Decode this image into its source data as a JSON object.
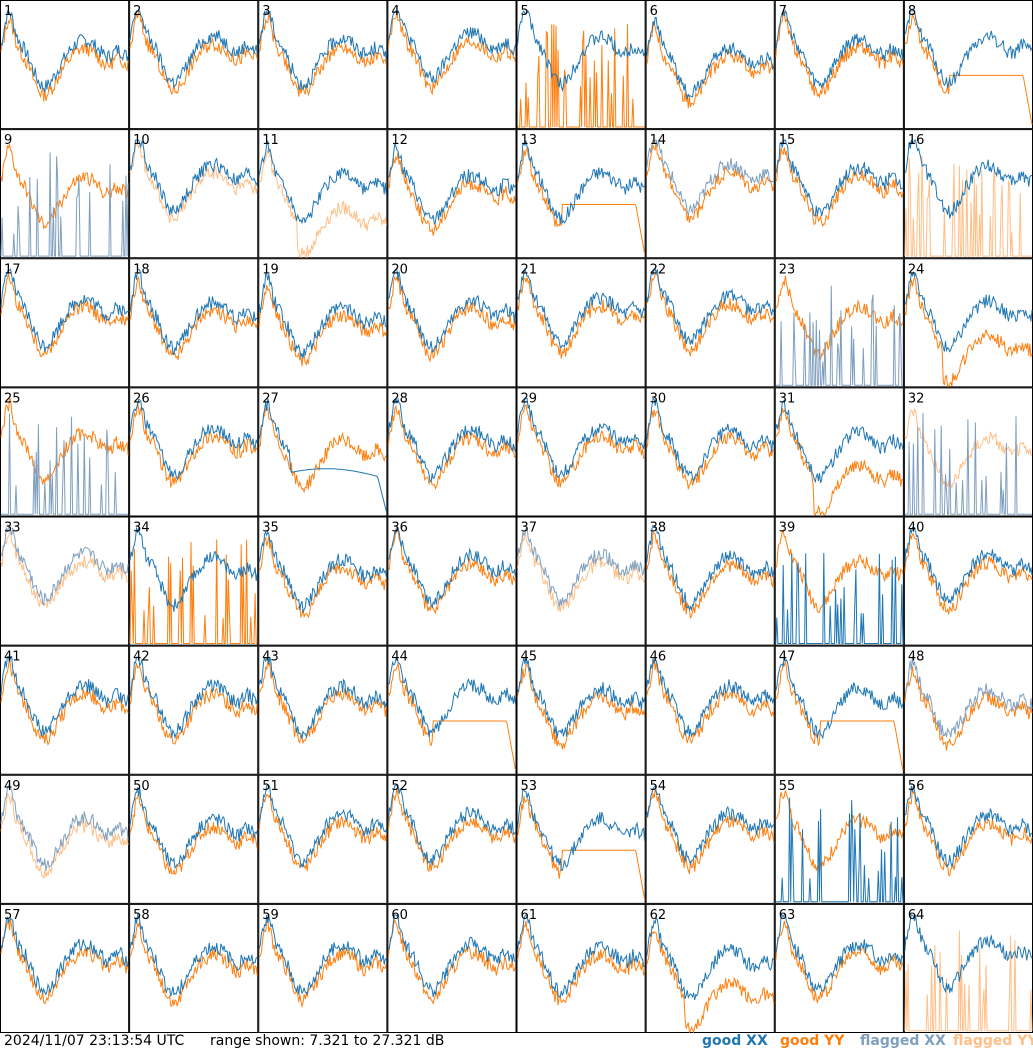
{
  "footer": {
    "timestamp": "2024/11/07 23:13:54 UTC",
    "range_text": "range shown: 7.321 to 27.321 dB"
  },
  "legend": [
    {
      "label_good": "good",
      "label_pol": "XX",
      "color": "#1f77b4"
    },
    {
      "label_good": "good",
      "label_pol": "YY",
      "color": "#ff7f0e"
    },
    {
      "label_good": "flagged",
      "label_pol": "XX",
      "color": "#7f9fbf"
    },
    {
      "label_good": "flagged",
      "label_pol": "YY",
      "color": "#ffbf87"
    }
  ],
  "colors": {
    "good_xx": "#1f77b4",
    "good_yy": "#ff7f0e",
    "flagged_xx": "#7f9fbf",
    "flagged_yy": "#ffbf87"
  },
  "chart_data": {
    "type": "line",
    "ylim": [
      7.321,
      27.321
    ],
    "grid_rows": 8,
    "grid_cols": 8,
    "panels": [
      {
        "id": "1",
        "xx": "good",
        "yy": "good",
        "mode": "normal",
        "offset": 0.0
      },
      {
        "id": "2",
        "xx": "good",
        "yy": "good",
        "mode": "normal",
        "offset": 0.5
      },
      {
        "id": "3",
        "xx": "good",
        "yy": "good",
        "mode": "normal",
        "offset": 0.2
      },
      {
        "id": "4",
        "xx": "good",
        "yy": "good",
        "mode": "normal",
        "offset": 0.8
      },
      {
        "id": "5",
        "xx": "good",
        "yy": "good",
        "mode": "yy_spiky",
        "offset": 0.3
      },
      {
        "id": "6",
        "xx": "good",
        "yy": "good",
        "mode": "normal",
        "offset": -0.8
      },
      {
        "id": "7",
        "xx": "good",
        "yy": "good",
        "mode": "normal",
        "offset": 0.2
      },
      {
        "id": "8",
        "xx": "good",
        "yy": "good",
        "mode": "yy_drop",
        "offset": 0.4
      },
      {
        "id": "9",
        "xx": "flagged",
        "yy": "good",
        "mode": "xx_spiky",
        "offset": 0.0
      },
      {
        "id": "10",
        "xx": "good",
        "yy": "flagged",
        "mode": "normal",
        "offset": 0.5
      },
      {
        "id": "11",
        "xx": "good",
        "yy": "flagged",
        "mode": "yy_low",
        "offset": -0.5
      },
      {
        "id": "12",
        "xx": "good",
        "yy": "good",
        "mode": "normal",
        "offset": -0.6
      },
      {
        "id": "13",
        "xx": "good",
        "yy": "good",
        "mode": "yy_drop",
        "offset": -0.3
      },
      {
        "id": "14",
        "xx": "flagged",
        "yy": "good",
        "mode": "normal",
        "offset": 0.6
      },
      {
        "id": "15",
        "xx": "good",
        "yy": "good",
        "mode": "normal",
        "offset": 0.2
      },
      {
        "id": "16",
        "xx": "good",
        "yy": "flagged",
        "mode": "yy_spiky",
        "offset": 0.4
      },
      {
        "id": "17",
        "xx": "good",
        "yy": "good",
        "mode": "normal",
        "offset": 0.0
      },
      {
        "id": "18",
        "xx": "good",
        "yy": "good",
        "mode": "normal",
        "offset": -0.4
      },
      {
        "id": "19",
        "xx": "good",
        "yy": "good",
        "mode": "normal",
        "offset": -0.9
      },
      {
        "id": "20",
        "xx": "good",
        "yy": "good",
        "mode": "normal",
        "offset": -0.2
      },
      {
        "id": "21",
        "xx": "good",
        "yy": "good",
        "mode": "normal",
        "offset": 0.1
      },
      {
        "id": "22",
        "xx": "good",
        "yy": "good",
        "mode": "normal",
        "offset": 0.3
      },
      {
        "id": "23",
        "xx": "flagged",
        "yy": "good",
        "mode": "xx_spiky",
        "offset": 0.0
      },
      {
        "id": "24",
        "xx": "good",
        "yy": "good",
        "mode": "yy_low",
        "offset": -0.3
      },
      {
        "id": "25",
        "xx": "flagged",
        "yy": "good",
        "mode": "xx_spiky",
        "offset": 0.3
      },
      {
        "id": "26",
        "xx": "good",
        "yy": "good",
        "mode": "normal",
        "offset": 0.0
      },
      {
        "id": "27",
        "xx": "good",
        "yy": "good",
        "mode": "xx_drop",
        "offset": -0.5
      },
      {
        "id": "28",
        "xx": "good",
        "yy": "good",
        "mode": "normal",
        "offset": -0.2
      },
      {
        "id": "29",
        "xx": "good",
        "yy": "good",
        "mode": "normal",
        "offset": 0.0
      },
      {
        "id": "30",
        "xx": "good",
        "yy": "good",
        "mode": "normal",
        "offset": -0.3
      },
      {
        "id": "31",
        "xx": "good",
        "yy": "good",
        "mode": "yy_low",
        "offset": -0.4
      },
      {
        "id": "32",
        "xx": "flagged",
        "yy": "flagged",
        "mode": "xx_spiky",
        "offset": -0.2
      },
      {
        "id": "33",
        "xx": "flagged",
        "yy": "flagged",
        "mode": "normal",
        "offset": 0.4
      },
      {
        "id": "34",
        "xx": "good",
        "yy": "good",
        "mode": "yy_spiky",
        "offset": -0.2
      },
      {
        "id": "35",
        "xx": "good",
        "yy": "good",
        "mode": "normal",
        "offset": -0.3
      },
      {
        "id": "36",
        "xx": "good",
        "yy": "good",
        "mode": "normal",
        "offset": 0.1
      },
      {
        "id": "37",
        "xx": "flagged",
        "yy": "flagged",
        "mode": "normal",
        "offset": 0.2
      },
      {
        "id": "38",
        "xx": "good",
        "yy": "good",
        "mode": "normal",
        "offset": 0.0
      },
      {
        "id": "39",
        "xx": "good",
        "yy": "good",
        "mode": "xx_spiky",
        "offset": 0.5
      },
      {
        "id": "40",
        "xx": "good",
        "yy": "good",
        "mode": "normal",
        "offset": 0.2
      },
      {
        "id": "41",
        "xx": "good",
        "yy": "good",
        "mode": "normal",
        "offset": 0.1
      },
      {
        "id": "42",
        "xx": "good",
        "yy": "good",
        "mode": "normal",
        "offset": 0.0
      },
      {
        "id": "43",
        "xx": "good",
        "yy": "good",
        "mode": "normal",
        "offset": 0.0
      },
      {
        "id": "44",
        "xx": "good",
        "yy": "good",
        "mode": "yy_drop",
        "offset": 0.1
      },
      {
        "id": "45",
        "xx": "good",
        "yy": "good",
        "mode": "normal",
        "offset": -0.3
      },
      {
        "id": "46",
        "xx": "good",
        "yy": "good",
        "mode": "normal",
        "offset": 0.0
      },
      {
        "id": "47",
        "xx": "good",
        "yy": "good",
        "mode": "yy_drop",
        "offset": -0.2
      },
      {
        "id": "48",
        "xx": "flagged",
        "yy": "good",
        "mode": "normal",
        "offset": -0.4
      },
      {
        "id": "49",
        "xx": "flagged",
        "yy": "flagged",
        "mode": "normal",
        "offset": -0.3
      },
      {
        "id": "50",
        "xx": "good",
        "yy": "good",
        "mode": "normal",
        "offset": -0.4
      },
      {
        "id": "51",
        "xx": "good",
        "yy": "good",
        "mode": "normal",
        "offset": 0.1
      },
      {
        "id": "52",
        "xx": "good",
        "yy": "good",
        "mode": "normal",
        "offset": 0.2
      },
      {
        "id": "53",
        "xx": "good",
        "yy": "good",
        "mode": "yy_drop",
        "offset": -0.4
      },
      {
        "id": "54",
        "xx": "good",
        "yy": "good",
        "mode": "normal",
        "offset": 0.2
      },
      {
        "id": "55",
        "xx": "good",
        "yy": "good",
        "mode": "xx_spiky",
        "offset": 0.3
      },
      {
        "id": "56",
        "xx": "good",
        "yy": "good",
        "mode": "normal",
        "offset": 0.0
      },
      {
        "id": "57",
        "xx": "good",
        "yy": "good",
        "mode": "normal",
        "offset": 0.0
      },
      {
        "id": "58",
        "xx": "good",
        "yy": "good",
        "mode": "normal",
        "offset": -0.3
      },
      {
        "id": "59",
        "xx": "good",
        "yy": "good",
        "mode": "normal",
        "offset": -0.1
      },
      {
        "id": "60",
        "xx": "good",
        "yy": "good",
        "mode": "normal",
        "offset": 0.0
      },
      {
        "id": "61",
        "xx": "good",
        "yy": "good",
        "mode": "normal",
        "offset": -0.2
      },
      {
        "id": "62",
        "xx": "good",
        "yy": "good",
        "mode": "yy_low",
        "offset": -0.6
      },
      {
        "id": "63",
        "xx": "good",
        "yy": "good",
        "mode": "normal",
        "offset": 0.0
      },
      {
        "id": "64",
        "xx": "good",
        "yy": "flagged",
        "mode": "yy_spiky",
        "offset": 0.3
      }
    ]
  }
}
